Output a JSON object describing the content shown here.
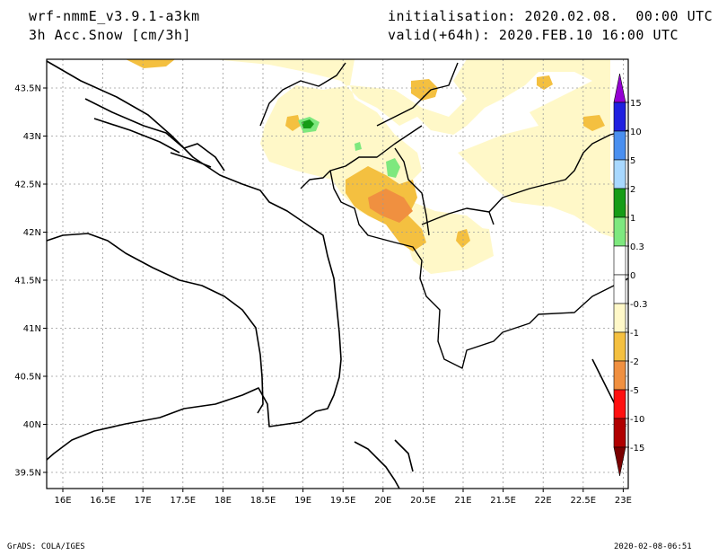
{
  "header": {
    "model": "wrf-nmmE_v3.9.1-a3km",
    "field": "3h Acc.Snow [cm/3h]",
    "init": "initialisation: 2020.02.08.  00:00 UTC",
    "valid": "valid(+64h): 2020.FEB.10 16:00 UTC"
  },
  "axes": {
    "lat_labels": [
      "43.5N",
      "43N",
      "42.5N",
      "42N",
      "41.5N",
      "41N",
      "40.5N",
      "40N",
      "39.5N"
    ],
    "lon_labels": [
      "16E",
      "16.5E",
      "17E",
      "17.5E",
      "18E",
      "18.5E",
      "19E",
      "19.5E",
      "20E",
      "20.5E",
      "21E",
      "21.5E",
      "22E",
      "22.5E",
      "23E"
    ],
    "grid": true
  },
  "colorbar": {
    "labels": [
      "15",
      "10",
      "5",
      "2",
      "1",
      "0.3",
      "0",
      "-0.3",
      "-1",
      "-2",
      "-5",
      "-10",
      "-15"
    ],
    "colors": [
      "#9400d3",
      "#2020e0",
      "#4a8ff0",
      "#a8d8ff",
      "#169c16",
      "#7ee87e",
      "#ffffff",
      "#ffffff",
      "#fff8c8",
      "#f4c040",
      "#f09040",
      "#ff1010",
      "#b00000",
      "#7a0000"
    ]
  },
  "footer": {
    "left": "GrADS: COLA/IGES",
    "right": "2020-02-08-06:51"
  }
}
